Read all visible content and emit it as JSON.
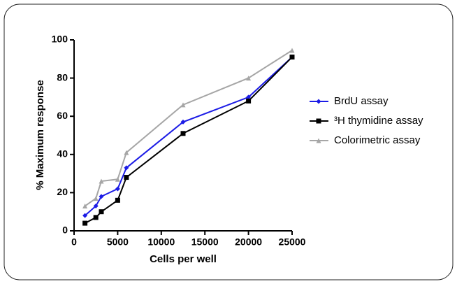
{
  "chart_data": {
    "type": "line",
    "xlabel": "Cells per well",
    "ylabel": "% Maximum response",
    "xlim": [
      0,
      25000
    ],
    "ylim": [
      0,
      100
    ],
    "xticks": [
      0,
      5000,
      10000,
      15000,
      20000,
      25000
    ],
    "yticks": [
      0,
      20,
      40,
      60,
      80,
      100
    ],
    "x": [
      1250,
      2500,
      3125,
      5000,
      6000,
      12500,
      20000,
      25000
    ],
    "series": [
      {
        "name": "BrdU assay",
        "color": "#1c1ce6",
        "marker": "diamond",
        "values": [
          8,
          13,
          18,
          22,
          33,
          57,
          70,
          91
        ]
      },
      {
        "name": "³H thymidine assay",
        "color": "#000000",
        "marker": "square",
        "values": [
          4,
          7,
          10,
          16,
          28,
          51,
          68,
          91
        ]
      },
      {
        "name": "Colorimetric assay",
        "color": "#a6a6a6",
        "marker": "triangle",
        "values": [
          13,
          17,
          26,
          27,
          41,
          66,
          80,
          94.5
        ]
      }
    ],
    "legend": "right"
  }
}
